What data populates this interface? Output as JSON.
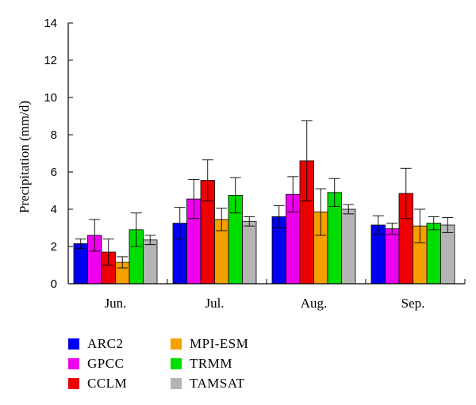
{
  "chart_data": {
    "type": "bar",
    "title": "",
    "xlabel": "",
    "ylabel": "Precipitation (mm/d)",
    "ylim": [
      0,
      14
    ],
    "yticks": [
      0,
      2,
      4,
      6,
      8,
      10,
      12,
      14
    ],
    "categories": [
      "Jun.",
      "Jul.",
      "Aug.",
      "Sep."
    ],
    "series": [
      {
        "name": "ARC2",
        "color": "#0000ee",
        "values": [
          2.15,
          3.25,
          3.6,
          3.15
        ],
        "errors": [
          0.25,
          0.85,
          0.6,
          0.5
        ]
      },
      {
        "name": "GPCC",
        "color": "#ee00ee",
        "values": [
          2.6,
          4.55,
          4.8,
          2.95
        ],
        "errors": [
          0.85,
          1.05,
          0.95,
          0.3
        ]
      },
      {
        "name": "CCLM",
        "color": "#ee0000",
        "values": [
          1.7,
          5.55,
          6.6,
          4.85
        ],
        "errors": [
          0.7,
          1.1,
          2.15,
          1.35
        ]
      },
      {
        "name": "MPI-ESM",
        "color": "#f5a000",
        "values": [
          1.15,
          3.45,
          3.85,
          3.1
        ],
        "errors": [
          0.3,
          0.6,
          1.25,
          0.9
        ]
      },
      {
        "name": "TRMM",
        "color": "#00dd00",
        "values": [
          2.9,
          4.75,
          4.9,
          3.25
        ],
        "errors": [
          0.9,
          0.95,
          0.75,
          0.35
        ]
      },
      {
        "name": "TAMSAT",
        "color": "#b4b4b4",
        "values": [
          2.35,
          3.35,
          4.0,
          3.15
        ],
        "errors": [
          0.25,
          0.25,
          0.25,
          0.4
        ]
      }
    ],
    "legend_placement": "bottom-left"
  },
  "legend": {
    "items": [
      {
        "label": "ARC2",
        "color": "#0000ee"
      },
      {
        "label": "GPCC",
        "color": "#ee00ee"
      },
      {
        "label": "CCLM",
        "color": "#ee0000"
      },
      {
        "label": "MPI-ESM",
        "color": "#f5a000"
      },
      {
        "label": "TRMM",
        "color": "#00dd00"
      },
      {
        "label": "TAMSAT",
        "color": "#b4b4b4"
      }
    ]
  }
}
